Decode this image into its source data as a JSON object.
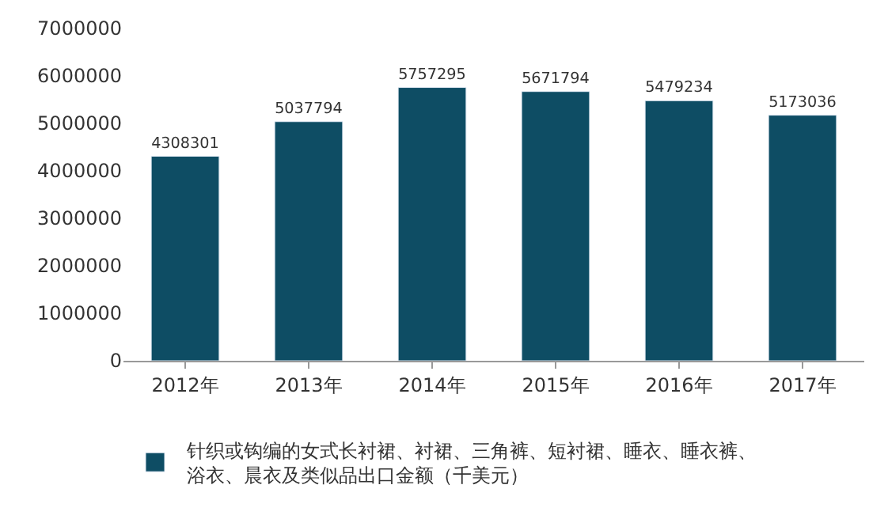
{
  "chart_data": {
    "type": "bar",
    "categories": [
      "2012年",
      "2013年",
      "2014年",
      "2015年",
      "2016年",
      "2017年"
    ],
    "series": [
      {
        "name": "针织或钩编的女式长衬裙、衬裙、三角裤、短衬裙、睡衣、睡衣裤、浴衣、晨衣及类似品出口金额（千美元）",
        "color": "#0e4d64",
        "values": [
          4308301,
          5037794,
          5757295,
          5671794,
          5479234,
          5173036
        ]
      }
    ],
    "ylim": [
      0,
      7000000
    ],
    "yticks": [
      0,
      1000000,
      2000000,
      3000000,
      4000000,
      5000000,
      6000000,
      7000000
    ],
    "data_labels": true,
    "legend": "bottom"
  }
}
